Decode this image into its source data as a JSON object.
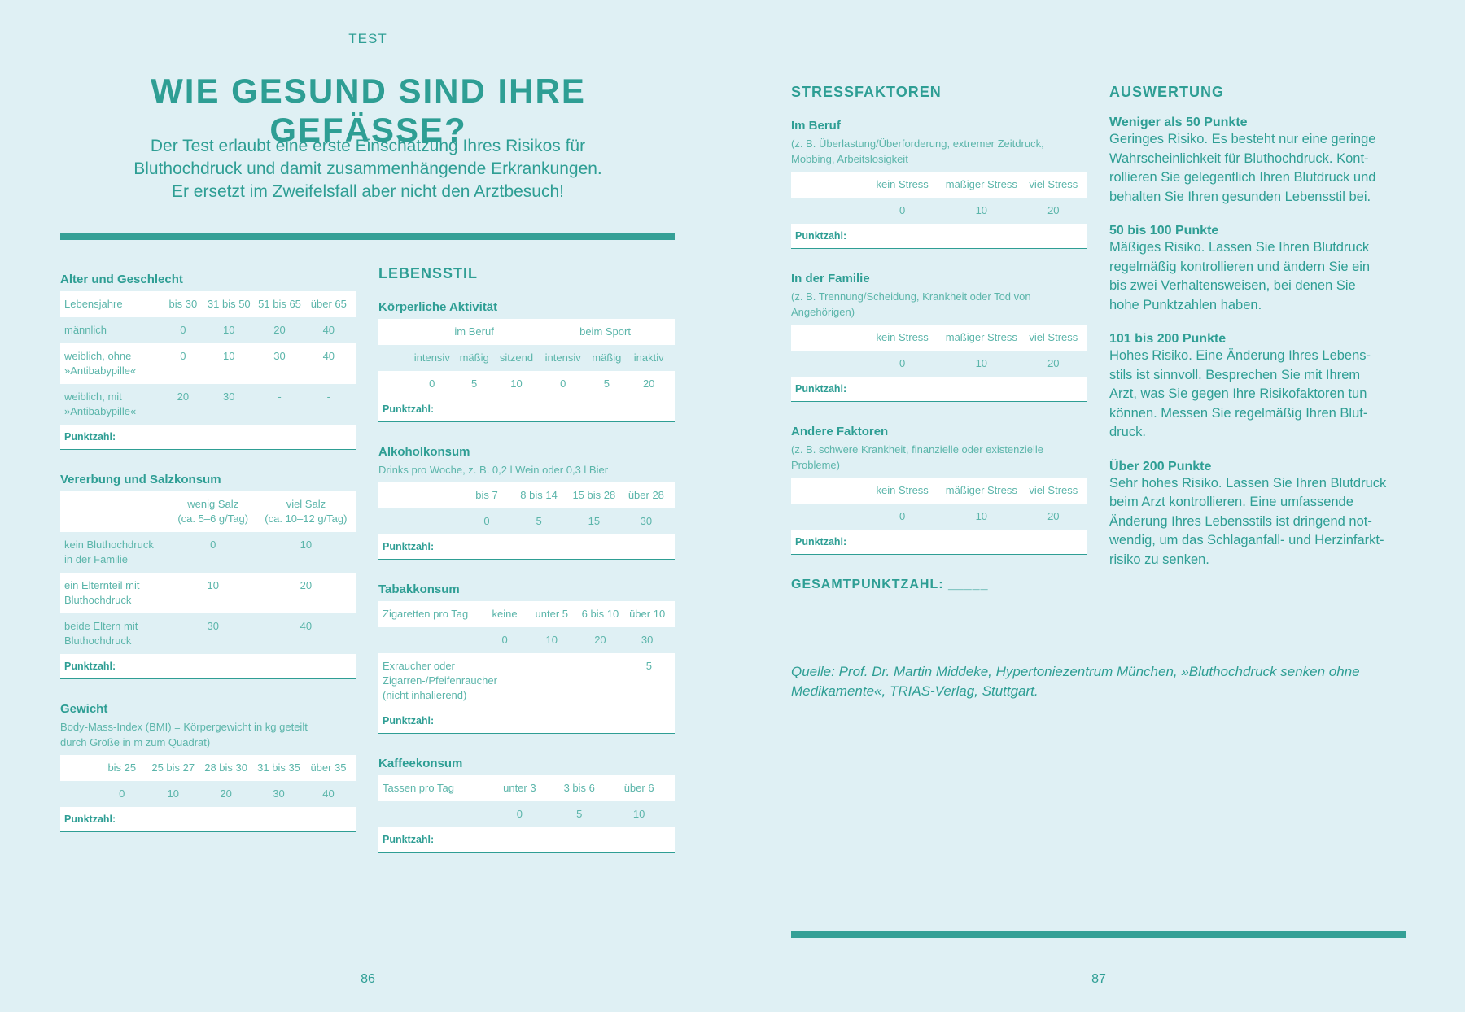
{
  "kicker": "TEST",
  "title": "WIE GESUND SIND IHRE GEFÄSSE?",
  "intro": "Der Test erlaubt eine erste Einschätzung Ihres Risikos für\nBluthochdruck und damit zusammenhängende Erkrankungen.\nEr ersetzt im Zweifelsfall aber nicht den Arztbesuch!",
  "score_label": "Punktzahl:",
  "colors": {
    "background": "#dff0f4",
    "accent": "#2e9e94",
    "text_light": "#5bb5aa"
  },
  "left_sections": [
    {
      "key": "alter",
      "title": "Alter und Geschlecht",
      "rows": [
        [
          "Lebensjahre",
          "bis 30",
          "31 bis 50",
          "51 bis 65",
          "über 65"
        ],
        [
          "männlich",
          "0",
          "10",
          "20",
          "40"
        ],
        [
          "weiblich, ohne\n»Antibabypille«",
          "0",
          "10",
          "30",
          "40"
        ],
        [
          "weiblich, mit\n»Antibabypille«",
          "20",
          "30",
          "-",
          "-"
        ]
      ]
    },
    {
      "key": "salz",
      "title": "Vererbung und Salzkonsum",
      "rows": [
        [
          "",
          "wenig Salz\n(ca. 5–6 g/Tag)",
          "viel Salz\n(ca. 10–12 g/Tag)"
        ],
        [
          "kein Bluthochdruck\nin der Familie",
          "0",
          "10"
        ],
        [
          "ein Elternteil mit\nBluthochdruck",
          "10",
          "20"
        ],
        [
          "beide Eltern mit\nBluthochdruck",
          "30",
          "40"
        ]
      ]
    },
    {
      "key": "gewicht",
      "title": "Gewicht",
      "subtitle": "Body-Mass-Index (BMI) = Körpergewicht in kg geteilt\ndurch Größe in m zum Quadrat)",
      "rows": [
        [
          "",
          "bis 25",
          "25 bis 27",
          "28 bis 30",
          "31 bis 35",
          "über 35"
        ],
        [
          "",
          "0",
          "10",
          "20",
          "30",
          "40"
        ]
      ]
    }
  ],
  "middle": {
    "heading": "LEBENSSTIL",
    "sections": [
      {
        "key": "aktiv",
        "title": "Körperliche Aktivität",
        "rows": [
          [
            "",
            "im Beruf",
            "beim Sport"
          ],
          [
            "",
            "intensiv",
            "mäßig",
            "sitzend",
            "intensiv",
            "mäßig",
            "inaktiv"
          ],
          [
            "",
            "0",
            "5",
            "10",
            "0",
            "5",
            "20"
          ]
        ]
      },
      {
        "key": "alkohol",
        "title": "Alkoholkonsum",
        "subtitle": "Drinks pro Woche, z. B. 0,2 l Wein oder 0,3 l Bier",
        "rows": [
          [
            "",
            "bis 7",
            "8 bis 14",
            "15 bis 28",
            "über 28"
          ],
          [
            "",
            "0",
            "5",
            "15",
            "30"
          ]
        ]
      },
      {
        "key": "tabak",
        "title": "Tabakkonsum",
        "rows": [
          [
            "Zigaretten pro Tag",
            "keine",
            "unter 5",
            "6 bis 10",
            "über 10"
          ],
          [
            "",
            "0",
            "10",
            "20",
            "30"
          ],
          [
            "Exraucher oder Zigarren-/Pfeifenraucher\n(nicht inhalierend)",
            "5"
          ]
        ]
      },
      {
        "key": "kaffee",
        "title": "Kaffeekonsum",
        "rows": [
          [
            "Tassen pro Tag",
            "unter 3",
            "3 bis 6",
            "über 6"
          ],
          [
            "",
            "0",
            "5",
            "10"
          ]
        ]
      }
    ]
  },
  "stress": {
    "heading": "STRESSFAKTOREN",
    "sections": [
      {
        "key": "stress",
        "title": "Im Beruf",
        "subtitle": "(z. B. Überlastung/Überforderung, extremer Zeitdruck,\nMobbing, Arbeitslosigkeit",
        "rows": [
          [
            "",
            "kein Stress",
            "mäßiger Stress",
            "viel Stress"
          ],
          [
            "",
            "0",
            "10",
            "20"
          ]
        ]
      },
      {
        "key": "stress",
        "title": "In der Familie",
        "subtitle": "(z. B. Trennung/Scheidung, Krankheit oder Tod von\nAngehörigen)",
        "rows": [
          [
            "",
            "kein Stress",
            "mäßiger Stress",
            "viel Stress"
          ],
          [
            "",
            "0",
            "10",
            "20"
          ]
        ]
      },
      {
        "key": "stress",
        "title": "Andere Faktoren",
        "subtitle": "(z. B. schwere Krankheit, finanzielle oder existenzielle\nProbleme)",
        "rows": [
          [
            "",
            "kein Stress",
            "mäßiger Stress",
            "viel Stress"
          ],
          [
            "",
            "0",
            "10",
            "20"
          ]
        ]
      }
    ],
    "total": "GESAMTPUNKTZAHL: _____"
  },
  "auswertung": {
    "heading": "AUSWERTUNG",
    "items": [
      {
        "head": "Weniger als 50 Punkte",
        "text": "Geringes Risiko. Es besteht nur eine geringe\nWahrscheinlichkeit für Bluthochdruck. Kont-\nrollieren Sie gelegentlich Ihren Blutdruck und\nbehalten Sie Ihren gesunden Lebensstil bei."
      },
      {
        "head": "50 bis 100 Punkte",
        "text": "Mäßiges Risiko. Lassen Sie Ihren Blutdruck\nregelmäßig kontrollieren und ändern Sie ein\nbis zwei Verhaltensweisen, bei denen Sie\nhohe Punktzahlen haben."
      },
      {
        "head": "101 bis 200 Punkte",
        "text": "Hohes Risiko. Eine Änderung Ihres Lebens-\nstils ist sinnvoll. Besprechen Sie mit Ihrem\nArzt, was Sie gegen Ihre Risikofaktoren tun\nkönnen. Messen Sie regelmäßig Ihren Blut-\ndruck."
      },
      {
        "head": "Über 200 Punkte",
        "text": "Sehr hohes Risiko. Lassen Sie Ihren Blutdruck\nbeim Arzt kontrollieren. Eine umfassende\nÄnderung Ihres Lebensstils ist dringend not-\nwendig, um das Schlaganfall- und Herzinfarkt-\nrisiko zu senken."
      }
    ]
  },
  "source": "Quelle: Prof. Dr. Martin Middeke, Hypertoniezentrum München, »Bluthochdruck senken ohne Medikamente«, TRIAS-Verlag, Stuttgart.",
  "page_left": "86",
  "page_right": "87"
}
